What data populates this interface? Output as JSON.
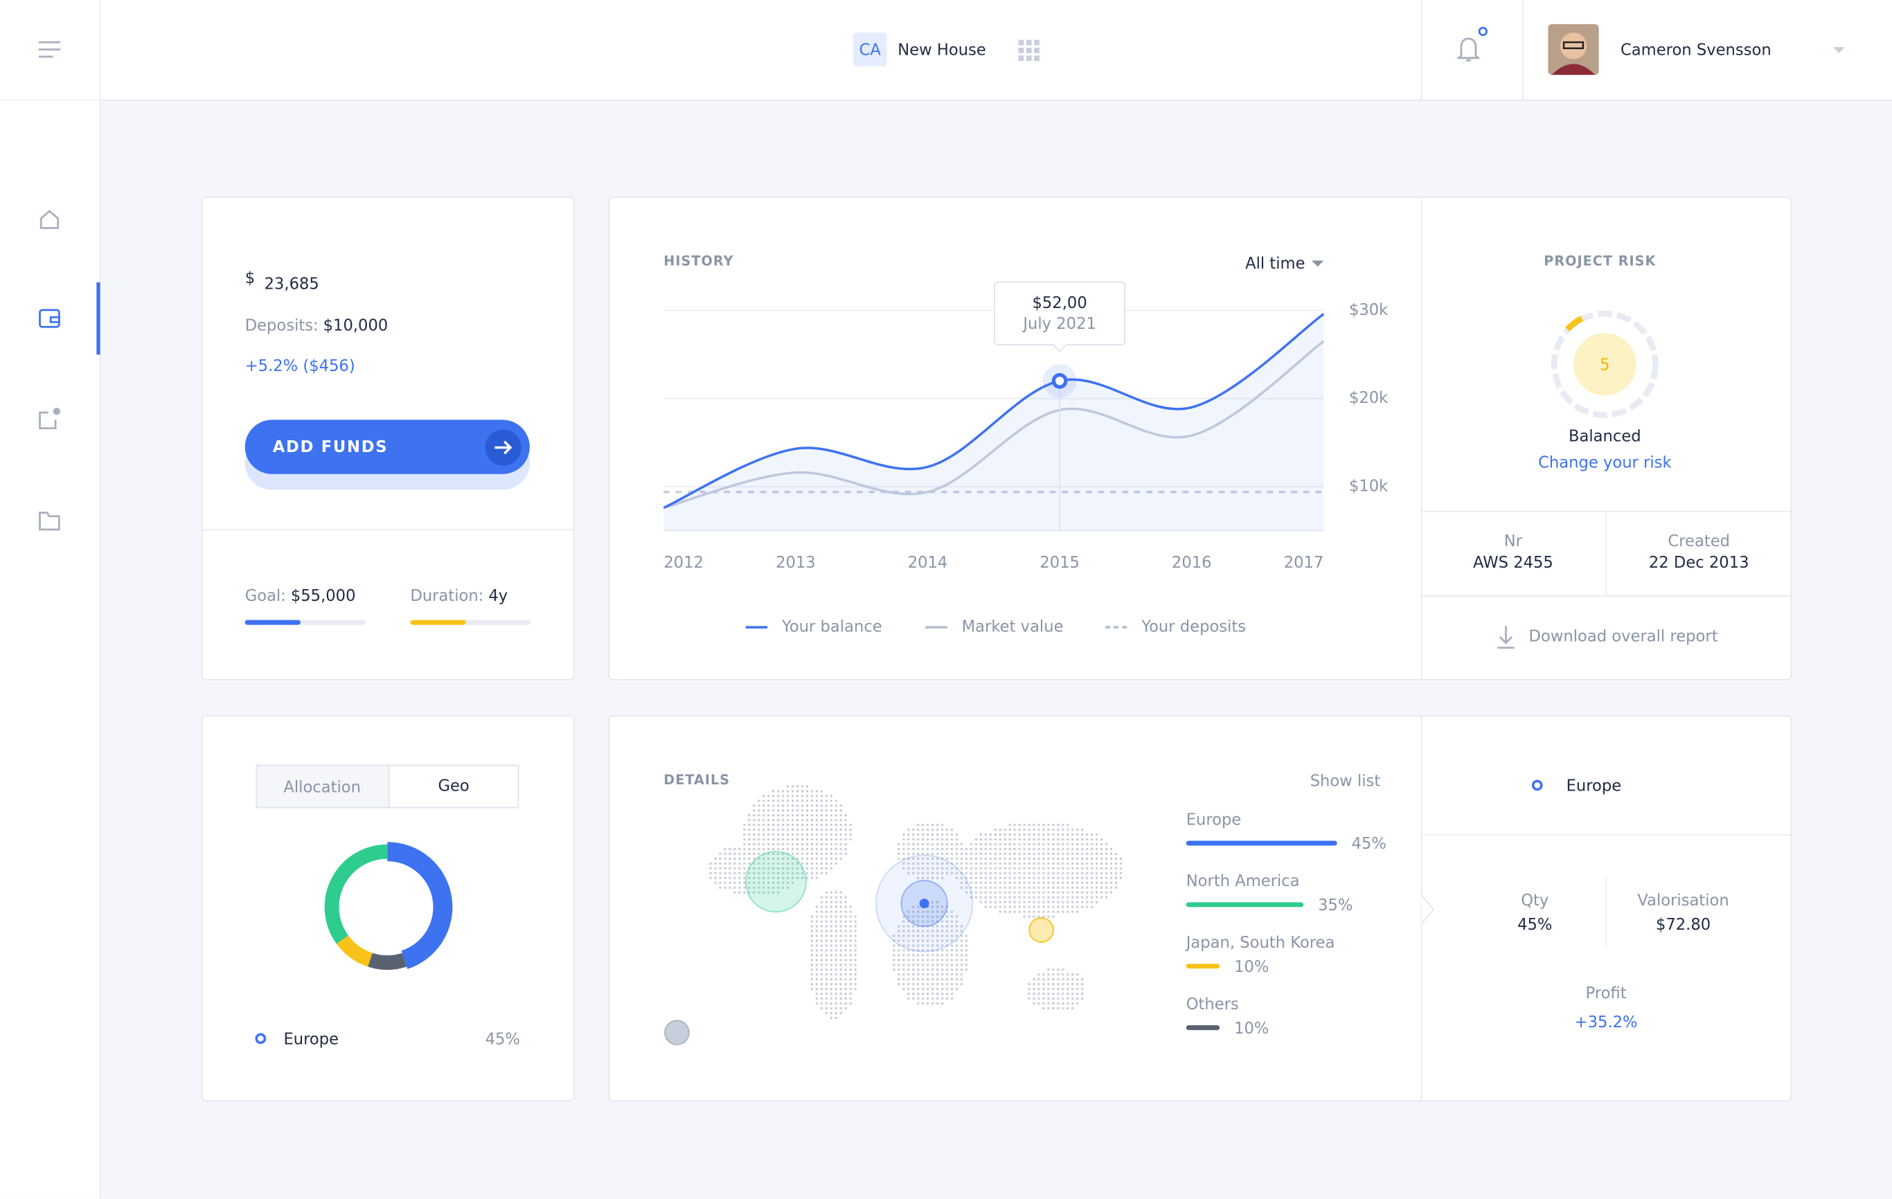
{
  "header": {
    "project_badge": "CA",
    "project_name": "New House",
    "user_name": "Cameron Svensson"
  },
  "balance_card": {
    "currency": "$",
    "amount": "23,685",
    "deposits_label": "Deposits:",
    "deposits_value": "$10,000",
    "change": "+5.2% ($456)",
    "button": "ADD FUNDS",
    "goal_label": "Goal:",
    "goal_value": "$55,000",
    "goal_progress": 46,
    "duration_label": "Duration:",
    "duration_value": "4y",
    "duration_progress": 46
  },
  "chart_data": {
    "type": "line",
    "title": "HISTORY",
    "period": "All time",
    "x": [
      2012,
      2013,
      2014,
      2015,
      2016,
      2017
    ],
    "xlim": [
      2012,
      2017
    ],
    "xticks": [
      2012,
      2013,
      2014,
      2015,
      2016,
      2017
    ],
    "ylim": [
      5000,
      31000
    ],
    "yticks": [
      {
        "value": 10000,
        "label": "$10k"
      },
      {
        "value": 20000,
        "label": "$20k"
      },
      {
        "value": 30000,
        "label": "$30k"
      }
    ],
    "grid": true,
    "legend": "bottom",
    "series": [
      {
        "name": "Your balance",
        "color": "#3d72f0",
        "style": "solid",
        "values": [
          7600,
          14300,
          12250,
          22000,
          19000,
          29600
        ]
      },
      {
        "name": "Market value",
        "color": "#c9cedd",
        "style": "solid",
        "values": [
          7600,
          11600,
          9400,
          18700,
          15800,
          26500
        ]
      },
      {
        "name": "Your deposits",
        "color": "#c9cedd",
        "style": "dashed",
        "values": [
          9400,
          9400,
          9400,
          9400,
          9400,
          9400
        ]
      }
    ],
    "tooltip": {
      "value": "$52,00",
      "date": "July 2021"
    }
  },
  "risk": {
    "title": "PROJECT RISK",
    "score": 5,
    "level": "Balanced",
    "link": "Change your risk",
    "nr_label": "Nr",
    "nr_value": "AWS 2455",
    "created_label": "Created",
    "created_value": "22 Dec 2013",
    "download": "Download overall report"
  },
  "allocation": {
    "tabs": [
      "Allocation",
      "Geo"
    ],
    "legend": {
      "name": "Europe",
      "value_label": "45%"
    }
  },
  "details": {
    "title": "DETAILS",
    "show_list": "Show list",
    "regions": [
      {
        "name": "Europe",
        "value": 45,
        "value_label": "45%",
        "color": "#3d72f0"
      },
      {
        "name": "North America",
        "value": 35,
        "value_label": "35%",
        "color": "#2ecc8f"
      },
      {
        "name": "Japan, South Korea",
        "value": 10,
        "value_label": "10%",
        "color": "#f7c31a"
      },
      {
        "name": "Others",
        "value": 10,
        "value_label": "10%",
        "color": "#5a6272"
      }
    ]
  },
  "region_panel": {
    "name": "Europe",
    "qty_label": "Qty",
    "qty_value": "45%",
    "valorisation_label": "Valorisation",
    "valorisation_value": "$72.80",
    "profit_label": "Profit",
    "profit_value": "+35.2%"
  }
}
